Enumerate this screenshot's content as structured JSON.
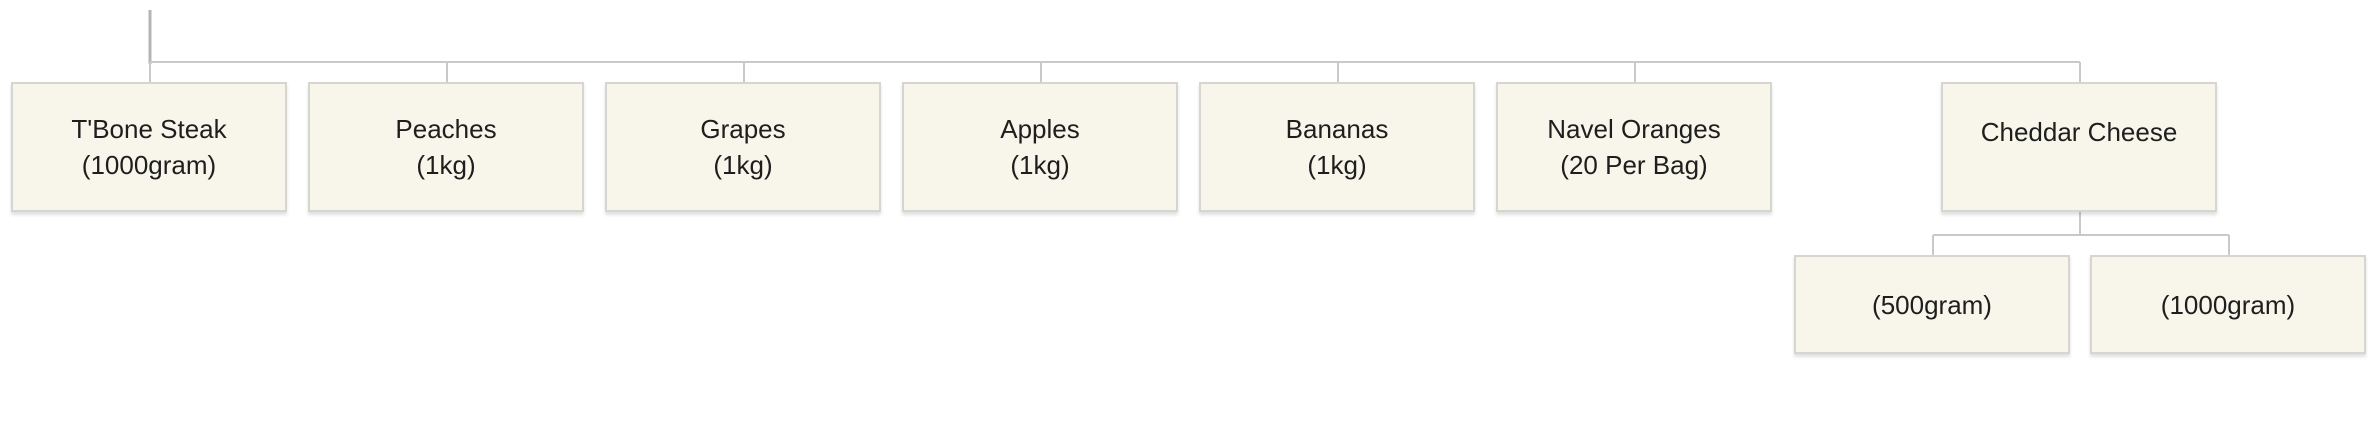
{
  "nodes": [
    {
      "id": "tbone",
      "name": "T'Bone Steak",
      "detail": "(1000gram)"
    },
    {
      "id": "peaches",
      "name": "Peaches",
      "detail": "(1kg)"
    },
    {
      "id": "grapes",
      "name": "Grapes",
      "detail": "(1kg)"
    },
    {
      "id": "apples",
      "name": "Apples",
      "detail": "(1kg)"
    },
    {
      "id": "bananas",
      "name": "Bananas",
      "detail": "(1kg)"
    },
    {
      "id": "oranges",
      "name": "Navel Oranges",
      "detail": "(20 Per Bag)"
    },
    {
      "id": "cheddar",
      "name": "Cheddar Cheese",
      "detail": ""
    },
    {
      "id": "cheddar-500",
      "name": "(500gram)",
      "detail": ""
    },
    {
      "id": "cheddar-1000",
      "name": "(1000gram)",
      "detail": ""
    }
  ],
  "colors": {
    "node_fill": "#f8f6ea",
    "node_border": "#d6d6d0",
    "connector": "#c9c9c9"
  }
}
